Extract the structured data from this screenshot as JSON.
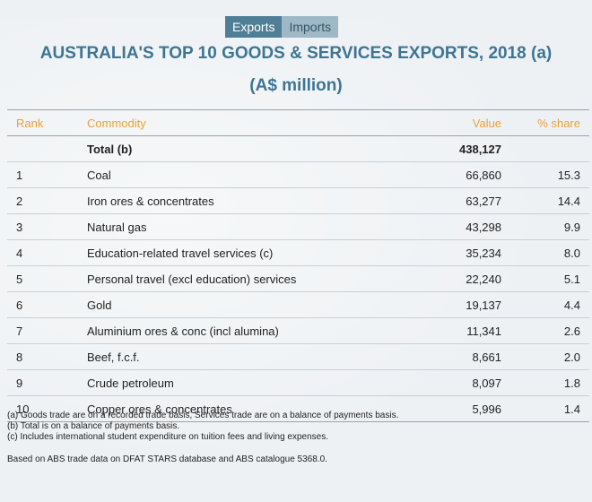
{
  "tabs": [
    {
      "label": "Exports",
      "active": true
    },
    {
      "label": "Imports",
      "active": false
    }
  ],
  "title": "AUSTRALIA'S TOP 10 GOODS & SERVICES EXPORTS, 2018 (a)",
  "subtitle": "(A$ million)",
  "table": {
    "headers": {
      "rank": "Rank",
      "commodity": "Commodity",
      "value": "Value",
      "share": "% share"
    },
    "total": {
      "rank": "",
      "commodity": "Total (b)",
      "value": "438,127",
      "share": ""
    },
    "rows": [
      {
        "rank": "1",
        "commodity": "Coal",
        "value": "66,860",
        "share": "15.3"
      },
      {
        "rank": "2",
        "commodity": "Iron ores & concentrates",
        "value": "63,277",
        "share": "14.4"
      },
      {
        "rank": "3",
        "commodity": "Natural gas",
        "value": "43,298",
        "share": "9.9"
      },
      {
        "rank": "4",
        "commodity": "Education-related travel services (c)",
        "value": "35,234",
        "share": "8.0"
      },
      {
        "rank": "5",
        "commodity": "Personal travel (excl education) services",
        "value": "22,240",
        "share": "5.1"
      },
      {
        "rank": "6",
        "commodity": "Gold",
        "value": "19,137",
        "share": "4.4"
      },
      {
        "rank": "7",
        "commodity": "Aluminium ores & conc (incl alumina)",
        "value": "11,341",
        "share": "2.6"
      },
      {
        "rank": "8",
        "commodity": "Beef, f.c.f.",
        "value": "8,661",
        "share": "2.0"
      },
      {
        "rank": "9",
        "commodity": "Crude petroleum",
        "value": "8,097",
        "share": "1.8"
      },
      {
        "rank": "10",
        "commodity": "Copper ores & concentrates",
        "value": "5,996",
        "share": "1.4"
      }
    ]
  },
  "notes": [
    "(a) Goods trade are on a recorded trade basis, Services trade are on a balance of payments basis.",
    "(b) Total is on a balance of payments basis.",
    "(c) Includes international student expenditure on tuition fees and living expenses."
  ],
  "source": "Based on ABS trade data on DFAT STARS database and ABS catalogue 5368.0."
}
